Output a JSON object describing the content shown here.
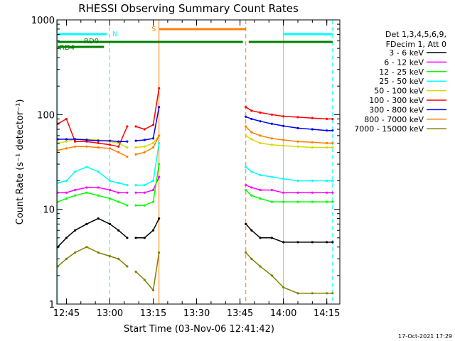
{
  "chart_data": {
    "type": "line",
    "title": "RHESSI Observing Summary Count Rates",
    "xlabel": "Start Time (03-Nov-06 12:41:42)",
    "ylabel": "Count Rate (s⁻¹ detector⁻¹)",
    "yscale": "log",
    "ylim": [
      1,
      1000
    ],
    "xlim": [
      "12:41:42",
      "14:19:30"
    ],
    "x_ticks": [
      "12:45",
      "13:00",
      "13:15",
      "13:30",
      "13:45",
      "14:00",
      "14:15"
    ],
    "y_ticks": [
      "1",
      "10",
      "100",
      "1000"
    ],
    "legend_header": [
      "Det 1,3,4,5,6,9,",
      "FDecim 1, Att 0"
    ],
    "legend_position": "right",
    "timestamp": "17-Oct-2021 17:29",
    "data_gaps": [
      [
        "13:06",
        "13:08"
      ],
      [
        "13:17",
        "13:47"
      ]
    ],
    "series": [
      {
        "name": "3 - 6 keV",
        "color": "#000000",
        "x": [
          "12:42",
          "12:45",
          "12:48",
          "12:52",
          "12:56",
          "13:00",
          "13:03",
          "13:06",
          "13:09",
          "13:12",
          "13:15",
          "13:17",
          "13:47",
          "13:49",
          "13:52",
          "13:56",
          "14:00",
          "14:05",
          "14:10",
          "14:15",
          "14:17"
        ],
        "values": [
          4,
          5,
          6,
          7,
          8,
          7,
          6,
          5,
          5,
          5,
          6,
          8,
          7,
          6,
          5,
          5,
          4.5,
          4.5,
          4.5,
          4.5,
          4.5
        ]
      },
      {
        "name": "6 - 12 keV",
        "color": "#ff00ff",
        "x": [
          "12:42",
          "12:45",
          "12:48",
          "12:52",
          "12:56",
          "13:00",
          "13:03",
          "13:06",
          "13:09",
          "13:12",
          "13:15",
          "13:17",
          "13:47",
          "13:49",
          "13:52",
          "13:56",
          "14:00",
          "14:05",
          "14:10",
          "14:15",
          "14:17"
        ],
        "values": [
          15,
          15,
          16,
          17,
          17,
          16,
          15,
          15,
          15,
          15,
          16,
          22,
          18,
          17,
          16,
          16,
          15,
          15,
          15,
          15,
          15
        ]
      },
      {
        "name": "12 - 25 keV",
        "color": "#00ff00",
        "x": [
          "12:42",
          "12:45",
          "12:48",
          "12:52",
          "12:56",
          "13:00",
          "13:03",
          "13:06",
          "13:09",
          "13:12",
          "13:15",
          "13:17",
          "13:47",
          "13:49",
          "13:52",
          "13:56",
          "14:00",
          "14:05",
          "14:10",
          "14:15",
          "14:17"
        ],
        "values": [
          12,
          13,
          14,
          15,
          14,
          13,
          12,
          11,
          11,
          11,
          12,
          30,
          16,
          14,
          13,
          12,
          12,
          12,
          12,
          12,
          12
        ]
      },
      {
        "name": "25 - 50 keV",
        "color": "#00ffff",
        "x": [
          "12:42",
          "12:45",
          "12:48",
          "12:52",
          "12:56",
          "13:00",
          "13:03",
          "13:06",
          "13:09",
          "13:12",
          "13:15",
          "13:17",
          "13:47",
          "13:49",
          "13:52",
          "13:56",
          "14:00",
          "14:05",
          "14:10",
          "14:15",
          "14:17"
        ],
        "values": [
          19,
          20,
          25,
          28,
          25,
          20,
          19,
          18,
          18,
          18,
          20,
          50,
          28,
          25,
          23,
          22,
          21,
          20,
          20,
          20,
          20
        ]
      },
      {
        "name": "50 - 100 keV",
        "color": "#d8d800",
        "x": [
          "12:42",
          "12:45",
          "12:48",
          "12:52",
          "12:56",
          "13:00",
          "13:03",
          "13:06",
          "13:09",
          "13:12",
          "13:15",
          "13:17",
          "13:47",
          "13:49",
          "13:52",
          "13:56",
          "14:00",
          "14:05",
          "14:10",
          "14:15",
          "14:17"
        ],
        "values": [
          50,
          52,
          55,
          55,
          54,
          52,
          50,
          45,
          45,
          46,
          50,
          60,
          60,
          55,
          50,
          48,
          47,
          46,
          45,
          45,
          45
        ]
      },
      {
        "name": "100 - 300 keV",
        "color": "#ff0000",
        "x": [
          "12:42",
          "12:45",
          "12:48",
          "12:52",
          "12:56",
          "13:00",
          "13:03",
          "13:06",
          "13:09",
          "13:12",
          "13:15",
          "13:17",
          "13:47",
          "13:49",
          "13:52",
          "13:56",
          "14:00",
          "14:05",
          "14:10",
          "14:15",
          "14:17"
        ],
        "values": [
          80,
          90,
          52,
          52,
          50,
          48,
          46,
          75,
          75,
          70,
          78,
          190,
          120,
          110,
          105,
          100,
          96,
          94,
          92,
          90,
          90
        ]
      },
      {
        "name": "300 - 800 keV",
        "color": "#0000ff",
        "x": [
          "12:42",
          "12:45",
          "12:48",
          "12:52",
          "12:56",
          "13:00",
          "13:03",
          "13:06",
          "13:09",
          "13:12",
          "13:15",
          "13:17",
          "13:47",
          "13:49",
          "13:52",
          "13:56",
          "14:00",
          "14:05",
          "14:10",
          "14:15",
          "14:17"
        ],
        "values": [
          55,
          55,
          55,
          54,
          53,
          53,
          52,
          52,
          53,
          54,
          56,
          120,
          95,
          90,
          85,
          80,
          76,
          72,
          70,
          68,
          68
        ]
      },
      {
        "name": "800 - 7000 keV",
        "color": "#ff8000",
        "x": [
          "12:42",
          "12:45",
          "12:48",
          "12:52",
          "12:56",
          "13:00",
          "13:03",
          "13:06",
          "13:09",
          "13:12",
          "13:15",
          "13:17",
          "13:47",
          "13:49",
          "13:52",
          "13:56",
          "14:00",
          "14:05",
          "14:10",
          "14:15",
          "14:17"
        ],
        "values": [
          42,
          44,
          46,
          46,
          45,
          44,
          40,
          36,
          38,
          40,
          45,
          60,
          75,
          65,
          60,
          56,
          54,
          52,
          51,
          50,
          50
        ]
      },
      {
        "name": "7000 - 15000 keV",
        "color": "#808000",
        "x": [
          "12:42",
          "12:45",
          "12:48",
          "12:52",
          "12:56",
          "13:00",
          "13:03",
          "13:06",
          "13:09",
          "13:12",
          "13:15",
          "13:17",
          "13:47",
          "13:49",
          "13:52",
          "13:56",
          "14:00",
          "14:05",
          "14:10",
          "14:15",
          "14:17"
        ],
        "values": [
          2.5,
          3,
          3.5,
          4,
          3.5,
          3.2,
          3,
          2.5,
          2.2,
          1.8,
          1.4,
          3.5,
          3.5,
          3,
          2.5,
          2,
          1.5,
          1.3,
          1.3,
          1.3,
          1.3
        ]
      }
    ],
    "flag_bars": [
      {
        "label": "N",
        "color": "#00ffff",
        "segments": [
          [
            "12:42",
            "12:59"
          ],
          [
            "14:00",
            "14:17"
          ]
        ]
      },
      {
        "label": "S",
        "color": "#ff8000",
        "segments": [
          [
            "13:17",
            "13:47"
          ]
        ]
      },
      {
        "label": "RD0",
        "color": "#008000",
        "segments": [
          [
            "12:42",
            "13:17"
          ],
          [
            "13:17",
            "13:46"
          ],
          [
            "13:48",
            "14:17"
          ]
        ]
      },
      {
        "label": "RD4",
        "color": "#008000",
        "segments": [
          [
            "12:42",
            "12:58"
          ]
        ]
      }
    ],
    "vlines": [
      {
        "x": "12:42",
        "color": "#00ffff",
        "style": "solid"
      },
      {
        "x": "13:00",
        "color": "#00ffff",
        "style": "dashed"
      },
      {
        "x": "13:17",
        "color": "#ff8000",
        "style": "solid"
      },
      {
        "x": "13:47",
        "color": "#ff8000",
        "style": "dashed"
      },
      {
        "x": "14:00",
        "color": "#00ffff",
        "style": "solid"
      },
      {
        "x": "14:17",
        "color": "#00ffff",
        "style": "dashed"
      }
    ]
  }
}
